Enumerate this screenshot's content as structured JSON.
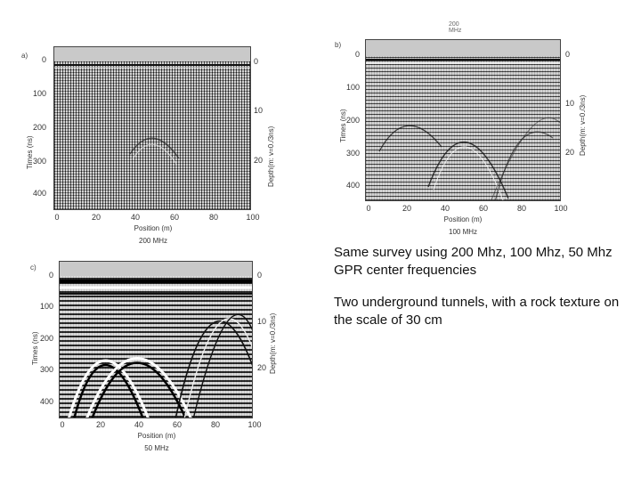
{
  "panels": [
    {
      "id": "a",
      "label": "a)",
      "y_ticks": [
        "0",
        "100",
        "200",
        "300",
        "400"
      ],
      "depth_ticks": [
        "0",
        "10",
        "20"
      ],
      "x_ticks": [
        "0",
        "20",
        "40",
        "60",
        "80",
        "100"
      ],
      "ylabel": "Times (ns)",
      "depth_label": "Depth(m: v=0./3ns)",
      "xlabel": "Position (m)",
      "caption": "200 MHz"
    },
    {
      "id": "b",
      "label": "b)",
      "y_ticks": [
        "0",
        "100",
        "200",
        "300",
        "400"
      ],
      "depth_ticks": [
        "0",
        "10",
        "20"
      ],
      "x_ticks": [
        "0",
        "20",
        "40",
        "60",
        "80",
        "100"
      ],
      "ylabel": "Times (ns)",
      "depth_label": "Depth(m: v=0./3ns)",
      "xlabel": "Position (m)",
      "caption": "100 MHz",
      "stray_top": "200 MHz"
    },
    {
      "id": "c",
      "label": "c)",
      "y_ticks": [
        "0",
        "100",
        "200",
        "300",
        "400"
      ],
      "depth_ticks": [
        "0",
        "10",
        "20"
      ],
      "x_ticks": [
        "0",
        "20",
        "40",
        "60",
        "80",
        "100"
      ],
      "ylabel": "Times (ns)",
      "depth_label": "Depth(m: v=0./3ns)",
      "xlabel": "Position (m)",
      "caption": "50 MHz"
    }
  ],
  "text": {
    "paragraph1": "Same survey using 200 Mhz, 100 Mhz, 50 Mhz GPR center frequencies",
    "paragraph2": "Two underground tunnels, with a rock texture on the scale of 30 cm"
  }
}
